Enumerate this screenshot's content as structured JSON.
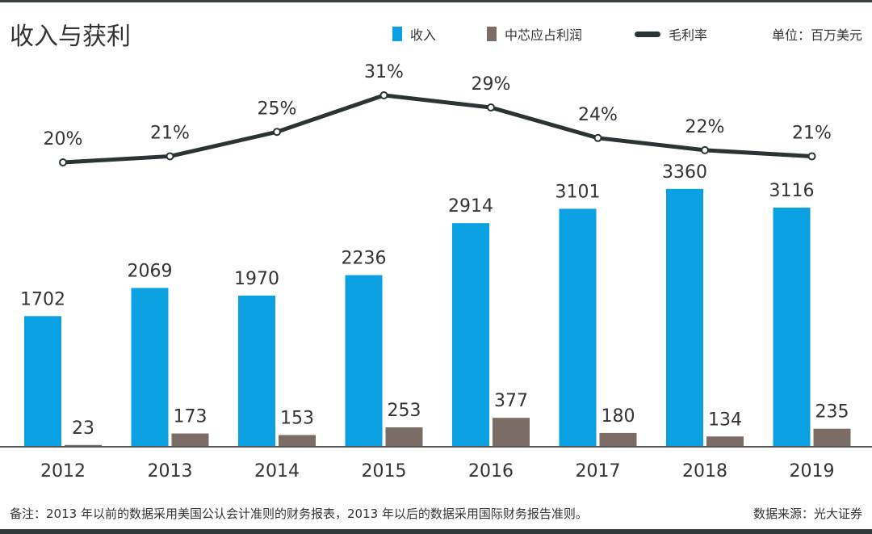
{
  "chart_data": {
    "type": "bar+line",
    "title": "收入与获利",
    "unit": "单位：百万美元",
    "categories": [
      "2012",
      "2013",
      "2014",
      "2015",
      "2016",
      "2017",
      "2018",
      "2019"
    ],
    "series": [
      {
        "name": "收入",
        "type": "bar",
        "color": "#0aa0e2",
        "values": [
          1702,
          2069,
          1970,
          2236,
          2914,
          3101,
          3360,
          3116
        ]
      },
      {
        "name": "中芯应占利润",
        "type": "bar",
        "color": "#7b6d66",
        "values": [
          23,
          173,
          153,
          253,
          377,
          180,
          134,
          235
        ]
      },
      {
        "name": "毛利率",
        "type": "line",
        "color": "#2a3434",
        "values": [
          20,
          21,
          25,
          31,
          29,
          24,
          22,
          21
        ],
        "labels": [
          "20%",
          "21%",
          "25%",
          "31%",
          "29%",
          "24%",
          "22%",
          "21%"
        ]
      }
    ],
    "legend_position": "top-right",
    "grid": false
  },
  "footer": {
    "note": "备注：2013 年以前的数据采用美国公认会计准则的财务报表，2013 年以后的数据采用国际财务报告准则。",
    "source": "数据来源：光大证券"
  }
}
